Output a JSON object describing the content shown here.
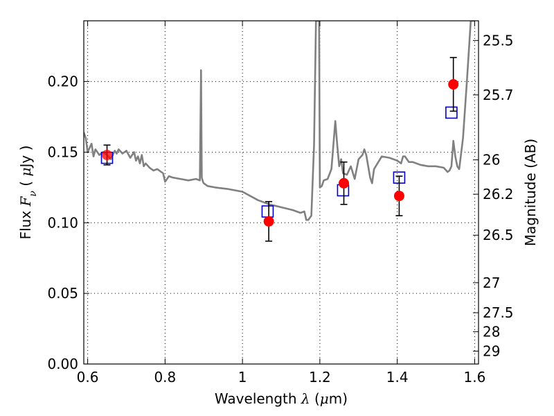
{
  "chart_data": {
    "type": "scatter",
    "xlabel_parts": [
      "Wavelength ",
      "λ",
      " (",
      "μ",
      "m)"
    ],
    "ylabel_parts": [
      "Flux  ",
      "F",
      "ν",
      "  ( ",
      "μ",
      "Jy )"
    ],
    "y2label": "Magnitude (AB)",
    "xlim": [
      0.59,
      1.61
    ],
    "ylim": [
      0.0,
      0.243
    ],
    "grid": true,
    "x_ticks": [
      0.6,
      0.8,
      1.0,
      1.2,
      1.4,
      1.6
    ],
    "x_tick_labels": [
      "0.6",
      "0.8",
      "1",
      "1.2",
      "1.4",
      "1.6"
    ],
    "y_ticks": [
      0.0,
      0.05,
      0.1,
      0.15,
      0.2
    ],
    "y_tick_labels": [
      "0.00",
      "0.05",
      "0.10",
      "0.15",
      "0.20"
    ],
    "y2_ticks": [
      {
        "label": "25.5",
        "value": 25.5
      },
      {
        "label": "25.7",
        "value": 25.7
      },
      {
        "label": "26",
        "value": 26.0
      },
      {
        "label": "26.2",
        "value": 26.2
      },
      {
        "label": "26.5",
        "value": 26.5
      },
      {
        "label": "27",
        "value": 27.0
      },
      {
        "label": "27.5",
        "value": 27.5
      },
      {
        "label": "28",
        "value": 28.0
      },
      {
        "label": "29",
        "value": 29.0
      }
    ],
    "series": [
      {
        "kind": "line",
        "color": "#808080",
        "x": [
          0.59,
          0.595,
          0.6,
          0.61,
          0.615,
          0.62,
          0.63,
          0.64,
          0.65,
          0.66,
          0.67,
          0.675,
          0.68,
          0.69,
          0.7,
          0.71,
          0.72,
          0.725,
          0.73,
          0.735,
          0.74,
          0.745,
          0.75,
          0.76,
          0.77,
          0.78,
          0.79,
          0.795,
          0.8,
          0.81,
          0.82,
          0.84,
          0.86,
          0.88,
          0.89,
          0.893,
          0.895,
          0.898,
          0.9,
          0.91,
          0.93,
          0.96,
          1.0,
          1.04,
          1.07,
          1.1,
          1.13,
          1.15,
          1.16,
          1.165,
          1.17,
          1.178,
          1.185,
          1.19,
          1.192,
          1.194,
          1.196,
          1.198,
          1.2,
          1.205,
          1.21,
          1.22,
          1.23,
          1.235,
          1.24,
          1.245,
          1.25,
          1.255,
          1.26,
          1.27,
          1.28,
          1.29,
          1.3,
          1.31,
          1.315,
          1.32,
          1.325,
          1.33,
          1.335,
          1.34,
          1.36,
          1.38,
          1.4,
          1.41,
          1.415,
          1.42,
          1.425,
          1.43,
          1.44,
          1.46,
          1.48,
          1.5,
          1.52,
          1.53,
          1.535,
          1.54,
          1.545,
          1.55,
          1.555,
          1.56,
          1.57,
          1.58,
          1.59,
          1.6
        ],
        "y": [
          0.164,
          0.16,
          0.15,
          0.156,
          0.147,
          0.152,
          0.148,
          0.15,
          0.148,
          0.145,
          0.151,
          0.149,
          0.152,
          0.149,
          0.151,
          0.146,
          0.15,
          0.144,
          0.147,
          0.142,
          0.148,
          0.14,
          0.142,
          0.139,
          0.137,
          0.138,
          0.136,
          0.135,
          0.129,
          0.133,
          0.132,
          0.131,
          0.13,
          0.131,
          0.13,
          0.208,
          0.132,
          0.129,
          0.128,
          0.126,
          0.125,
          0.124,
          0.122,
          0.116,
          0.113,
          0.111,
          0.109,
          0.107,
          0.108,
          0.102,
          0.102,
          0.105,
          0.155,
          0.243,
          0.243,
          0.243,
          0.243,
          0.243,
          0.125,
          0.126,
          0.13,
          0.131,
          0.138,
          0.155,
          0.172,
          0.155,
          0.14,
          0.145,
          0.135,
          0.134,
          0.14,
          0.131,
          0.145,
          0.148,
          0.152,
          0.148,
          0.14,
          0.132,
          0.128,
          0.138,
          0.147,
          0.146,
          0.144,
          0.142,
          0.147,
          0.147,
          0.145,
          0.143,
          0.143,
          0.141,
          0.14,
          0.14,
          0.139,
          0.136,
          0.137,
          0.14,
          0.158,
          0.147,
          0.14,
          0.138,
          0.16,
          0.2,
          0.243,
          0.243
        ]
      },
      {
        "kind": "markers",
        "marker": "square-open",
        "color": "#0000cc",
        "x": [
          0.65,
          1.065,
          1.26,
          1.405,
          1.54
        ],
        "y": [
          0.146,
          0.108,
          0.123,
          0.132,
          0.178
        ]
      },
      {
        "kind": "markers-errorbar",
        "marker": "circle-filled",
        "color": "#ff0000",
        "x": [
          0.65,
          1.068,
          1.262,
          1.405,
          1.545
        ],
        "y": [
          0.148,
          0.101,
          0.128,
          0.119,
          0.198
        ],
        "yerr": [
          0.007,
          0.014,
          0.015,
          0.014,
          0.019
        ]
      }
    ]
  }
}
